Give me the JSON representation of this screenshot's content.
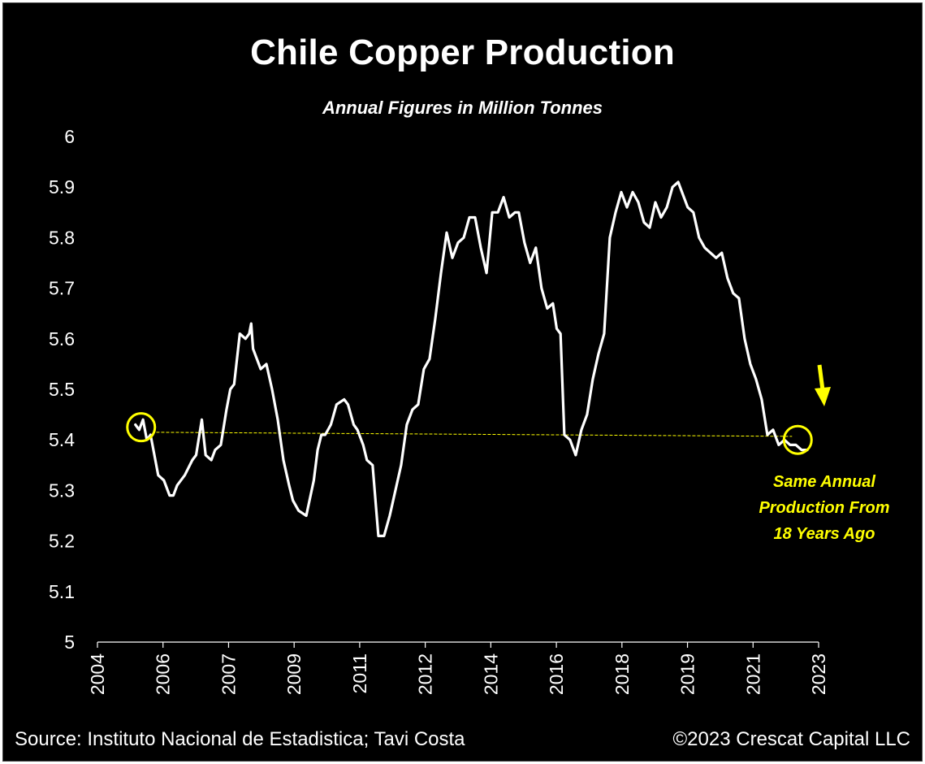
{
  "chart_data": {
    "type": "line",
    "title": "Chile Copper Production",
    "subtitle": "Annual Figures in Million Tonnes",
    "xlabel": "",
    "ylabel": "",
    "ylim": [
      5,
      6
    ],
    "xlim": [
      2004,
      2023
    ],
    "y_ticks": [
      "5",
      "5.1",
      "5.2",
      "5.3",
      "5.4",
      "5.5",
      "5.6",
      "5.7",
      "5.8",
      "5.9",
      "6"
    ],
    "x_ticks": [
      "2004",
      "2006",
      "2007",
      "2009",
      "2011",
      "2012",
      "2014",
      "2016",
      "2018",
      "2019",
      "2021",
      "2023"
    ],
    "grid": false,
    "legend": "none",
    "series": [
      {
        "color": "#ffffff",
        "x": [
          2005.0,
          2005.1,
          2005.2,
          2005.3,
          2005.4,
          2005.6,
          2005.75,
          2005.9,
          2006.0,
          2006.1,
          2006.3,
          2006.5,
          2006.6,
          2006.75,
          2006.85,
          2007.0,
          2007.1,
          2007.25,
          2007.4,
          2007.5,
          2007.6,
          2007.75,
          2007.9,
          2008.0,
          2008.05,
          2008.1,
          2008.3,
          2008.45,
          2008.6,
          2008.75,
          2008.9,
          2009.05,
          2009.15,
          2009.3,
          2009.5,
          2009.7,
          2009.8,
          2009.9,
          2010.0,
          2010.15,
          2010.3,
          2010.5,
          2010.6,
          2010.75,
          2010.85,
          2011.0,
          2011.1,
          2011.25,
          2011.4,
          2011.55,
          2011.7,
          2011.85,
          2012.0,
          2012.15,
          2012.3,
          2012.45,
          2012.6,
          2012.75,
          2012.9,
          2013.05,
          2013.2,
          2013.35,
          2013.5,
          2013.65,
          2013.8,
          2013.95,
          2014.1,
          2014.25,
          2014.4,
          2014.55,
          2014.7,
          2014.85,
          2015.0,
          2015.1,
          2015.25,
          2015.4,
          2015.55,
          2015.7,
          2015.85,
          2016.0,
          2016.1,
          2016.2,
          2016.3,
          2016.45,
          2016.6,
          2016.75,
          2016.9,
          2017.05,
          2017.2,
          2017.35,
          2017.5,
          2017.65,
          2017.8,
          2017.95,
          2018.1,
          2018.25,
          2018.4,
          2018.55,
          2018.7,
          2018.85,
          2019.0,
          2019.15,
          2019.3,
          2019.45,
          2019.55,
          2019.7,
          2019.85,
          2020.0,
          2020.15,
          2020.3,
          2020.45,
          2020.6,
          2020.75,
          2020.9,
          2021.05,
          2021.2,
          2021.35,
          2021.5,
          2021.65,
          2021.8,
          2021.95,
          2022.1,
          2022.25,
          2022.4,
          2022.55,
          2022.7
        ],
        "values": [
          5.43,
          5.42,
          5.44,
          5.4,
          5.41,
          5.33,
          5.32,
          5.29,
          5.29,
          5.31,
          5.33,
          5.36,
          5.37,
          5.44,
          5.37,
          5.36,
          5.38,
          5.39,
          5.46,
          5.5,
          5.51,
          5.61,
          5.6,
          5.61,
          5.63,
          5.58,
          5.54,
          5.55,
          5.5,
          5.44,
          5.36,
          5.31,
          5.28,
          5.26,
          5.25,
          5.32,
          5.38,
          5.41,
          5.41,
          5.43,
          5.47,
          5.48,
          5.47,
          5.43,
          5.42,
          5.39,
          5.36,
          5.35,
          5.21,
          5.21,
          5.25,
          5.3,
          5.35,
          5.43,
          5.46,
          5.47,
          5.54,
          5.56,
          5.64,
          5.73,
          5.81,
          5.76,
          5.79,
          5.8,
          5.84,
          5.84,
          5.78,
          5.73,
          5.85,
          5.85,
          5.88,
          5.84,
          5.85,
          5.85,
          5.79,
          5.75,
          5.78,
          5.7,
          5.66,
          5.67,
          5.62,
          5.61,
          5.41,
          5.4,
          5.37,
          5.42,
          5.45,
          5.52,
          5.57,
          5.61,
          5.8,
          5.85,
          5.89,
          5.86,
          5.89,
          5.87,
          5.83,
          5.82,
          5.87,
          5.84,
          5.86,
          5.9,
          5.91,
          5.88,
          5.86,
          5.85,
          5.8,
          5.78,
          5.77,
          5.76,
          5.77,
          5.72,
          5.69,
          5.68,
          5.6,
          5.55,
          5.52,
          5.48,
          5.41,
          5.42,
          5.39,
          5.4,
          5.39,
          5.39,
          5.38,
          5.38
        ]
      }
    ],
    "reference_line": {
      "y": 5.415,
      "color": "#ffff00",
      "style": "dashed"
    },
    "highlight_circles": [
      {
        "x": 2005.15,
        "y": 5.425,
        "color": "#ffff00"
      },
      {
        "x": 2022.45,
        "y": 5.4,
        "color": "#ffff00"
      }
    ],
    "arrow": {
      "color": "#ffff00",
      "direction": "down"
    },
    "annotation_lines": [
      "Same Annual",
      "Production From",
      "18 Years Ago"
    ]
  },
  "footer": {
    "source": "Source: Instituto Nacional de Estadistica; Tavi Costa",
    "copyright": "©2023 Crescat Capital LLC"
  }
}
